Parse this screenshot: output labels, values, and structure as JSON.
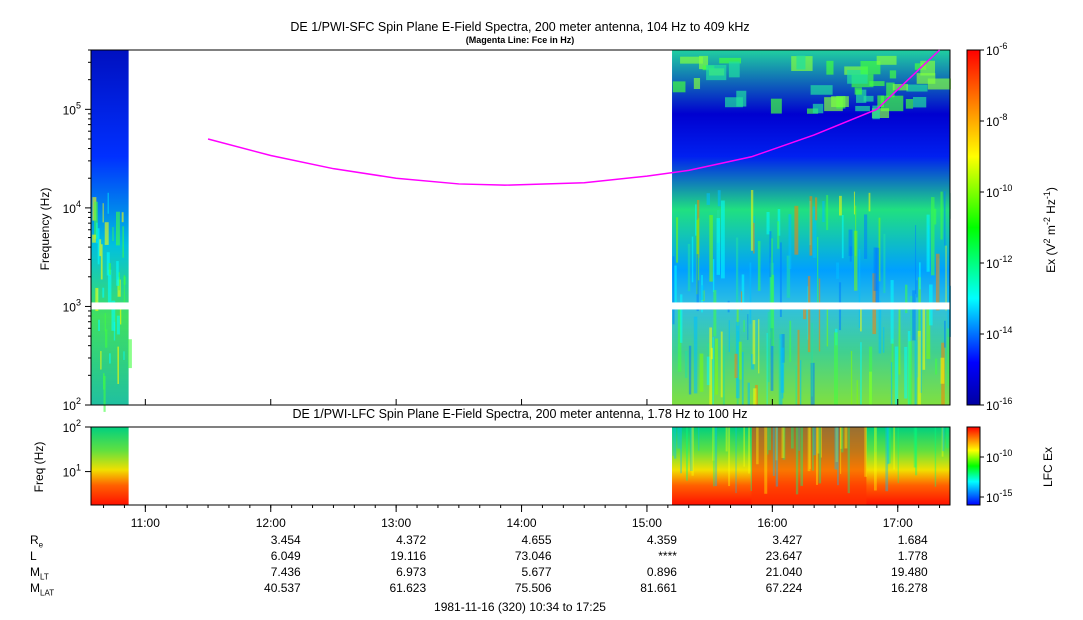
{
  "chart_data": [
    {
      "type": "heatmap",
      "title": "DE 1/PWI-SFC  Spin Plane E-Field Spectra, 200 meter antenna, 104 Hz to 409 kHz",
      "subtitle": "(Magenta Line: Fce in Hz)",
      "ylabel": "Frequency (Hz)",
      "y_scale": "log",
      "ylim": [
        100,
        400000
      ],
      "y_ticks": [
        {
          "value": 100,
          "base": "10",
          "exp": "2"
        },
        {
          "value": 1000,
          "base": "10",
          "exp": "3"
        },
        {
          "value": 10000,
          "base": "10",
          "exp": "4"
        },
        {
          "value": 100000,
          "base": "10",
          "exp": "5"
        }
      ],
      "colorbar": {
        "label_main": "Ex (V",
        "label_sup1": "2",
        "label_mid": " m",
        "label_sup2": "-2",
        "label_mid2": " Hz",
        "label_sup3": "-1",
        "label_end": ")",
        "ticks": [
          {
            "exp": "-6"
          },
          {
            "exp": "-8"
          },
          {
            "exp": "-10"
          },
          {
            "exp": "-12"
          },
          {
            "exp": "-14"
          },
          {
            "exp": "-16"
          }
        ]
      },
      "fce_line": {
        "color": "#ff00ff",
        "points": [
          {
            "t": "11:30",
            "f": 50000
          },
          {
            "t": "12:00",
            "f": 34000
          },
          {
            "t": "12:30",
            "f": 25000
          },
          {
            "t": "13:00",
            "f": 20000
          },
          {
            "t": "13:30",
            "f": 17500
          },
          {
            "t": "13:52",
            "f": 17000
          },
          {
            "t": "14:30",
            "f": 18000
          },
          {
            "t": "15:00",
            "f": 21000
          },
          {
            "t": "15:20",
            "f": 24000
          },
          {
            "t": "15:50",
            "f": 33000
          },
          {
            "t": "16:20",
            "f": 55000
          },
          {
            "t": "16:50",
            "f": 100000
          },
          {
            "t": "17:20",
            "f": 400000
          }
        ]
      },
      "data_gaps": [
        {
          "start": "10:52",
          "end": "15:12"
        }
      ]
    },
    {
      "type": "heatmap",
      "title": "DE 1/PWI-LFC  Spin Plane E-Field Spectra, 200 meter antenna, 1.78 Hz to 100 Hz",
      "ylabel": "Freq (Hz)",
      "y_scale": "log",
      "ylim": [
        1.78,
        100
      ],
      "y_ticks": [
        {
          "value": 10,
          "base": "10",
          "exp": "1"
        },
        {
          "value": 100,
          "base": "10",
          "exp": "2"
        }
      ],
      "colorbar": {
        "label": "LFC Ex",
        "ticks": [
          {
            "exp": "-10"
          },
          {
            "exp": "-15"
          }
        ]
      },
      "data_gaps": [
        {
          "start": "10:52",
          "end": "15:12"
        }
      ]
    }
  ],
  "time_axis": {
    "start": "10:34",
    "end": "17:25",
    "tick_labels": [
      "11:00",
      "12:00",
      "13:00",
      "14:00",
      "15:00",
      "16:00",
      "17:00"
    ]
  },
  "ephemeris": {
    "rows": [
      {
        "label_main": "R",
        "label_sub": "e",
        "values": [
          "3.454",
          "4.372",
          "4.655",
          "4.359",
          "3.427",
          "1.684"
        ]
      },
      {
        "label_main": "L",
        "label_sub": "",
        "values": [
          "6.049",
          "19.116",
          "73.046",
          "****",
          "23.647",
          "1.778"
        ]
      },
      {
        "label_main": "M",
        "label_sub": "LT",
        "values": [
          "7.436",
          "6.973",
          "5.677",
          "0.896",
          "21.040",
          "19.480"
        ]
      },
      {
        "label_main": "M",
        "label_sub": "LAT",
        "values": [
          "40.537",
          "61.623",
          "75.506",
          "81.661",
          "67.224",
          "16.278"
        ]
      }
    ]
  },
  "footer": "1981-11-16 (320) 10:34 to 17:25"
}
